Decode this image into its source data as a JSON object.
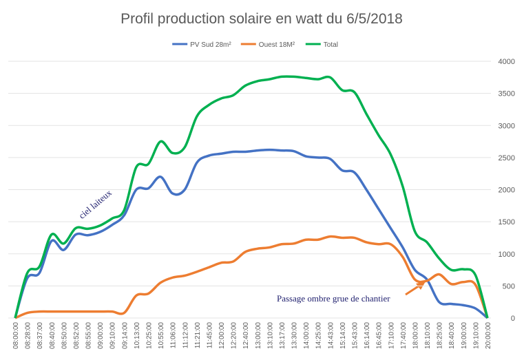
{
  "chart_data": {
    "type": "line",
    "title": "Profil production solaire en watt du 6/5/2018",
    "categories": [
      "08:00:00",
      "08:28:00",
      "08:37:00",
      "08:40:00",
      "08:50:00",
      "08:52:00",
      "08:55:00",
      "09:00:00",
      "09:10:00",
      "09:14:00",
      "10:13:00",
      "10:25:00",
      "10:55:00",
      "11:06:00",
      "11:12:00",
      "11:21:00",
      "11:45:00",
      "12:00:00",
      "12:20:00",
      "12:40:00",
      "13:00:00",
      "13:10:00",
      "13:17:00",
      "13:30:00",
      "14:00:00",
      "14:25:00",
      "14:43:00",
      "15:14:00",
      "15:43:00",
      "16:14:00",
      "16:45:00",
      "17:10:00",
      "17:40:00",
      "18:00:00",
      "18:10:00",
      "18:25:00",
      "18:40:00",
      "19:00:00",
      "19:10:00",
      "20:00:00"
    ],
    "series": [
      {
        "name": "PV Sud 28m²",
        "color": "#4472c4",
        "values": [
          0,
          620,
          700,
          1200,
          1060,
          1300,
          1290,
          1340,
          1450,
          1600,
          2000,
          2020,
          2200,
          1940,
          2000,
          2420,
          2530,
          2560,
          2590,
          2590,
          2610,
          2620,
          2610,
          2600,
          2520,
          2500,
          2480,
          2300,
          2270,
          2000,
          1700,
          1400,
          1100,
          750,
          600,
          250,
          220,
          200,
          150,
          0
        ]
      },
      {
        "name": "Ouest 18M²",
        "color": "#ed7d31",
        "values": [
          0,
          80,
          100,
          100,
          100,
          100,
          100,
          100,
          100,
          80,
          350,
          380,
          550,
          630,
          660,
          720,
          790,
          860,
          880,
          1030,
          1080,
          1100,
          1150,
          1160,
          1220,
          1220,
          1270,
          1250,
          1250,
          1180,
          1150,
          1150,
          950,
          600,
          580,
          680,
          530,
          560,
          520,
          0
        ]
      },
      {
        "name": "Total",
        "color": "#00b050",
        "values": [
          0,
          700,
          800,
          1300,
          1160,
          1400,
          1390,
          1440,
          1550,
          1680,
          2350,
          2400,
          2750,
          2570,
          2660,
          3140,
          3320,
          3420,
          3470,
          3620,
          3690,
          3720,
          3760,
          3760,
          3740,
          3720,
          3750,
          3550,
          3520,
          3180,
          2850,
          2550,
          2050,
          1350,
          1180,
          930,
          750,
          760,
          670,
          0
        ]
      }
    ],
    "ylim": [
      0,
      4000
    ],
    "yticks": [
      0,
      500,
      1000,
      1500,
      2000,
      2500,
      3000,
      3500,
      4000
    ],
    "grid": true,
    "legend": "top",
    "annotations": [
      "ciel laiteux",
      "Passage ombre grue de chantier"
    ]
  }
}
